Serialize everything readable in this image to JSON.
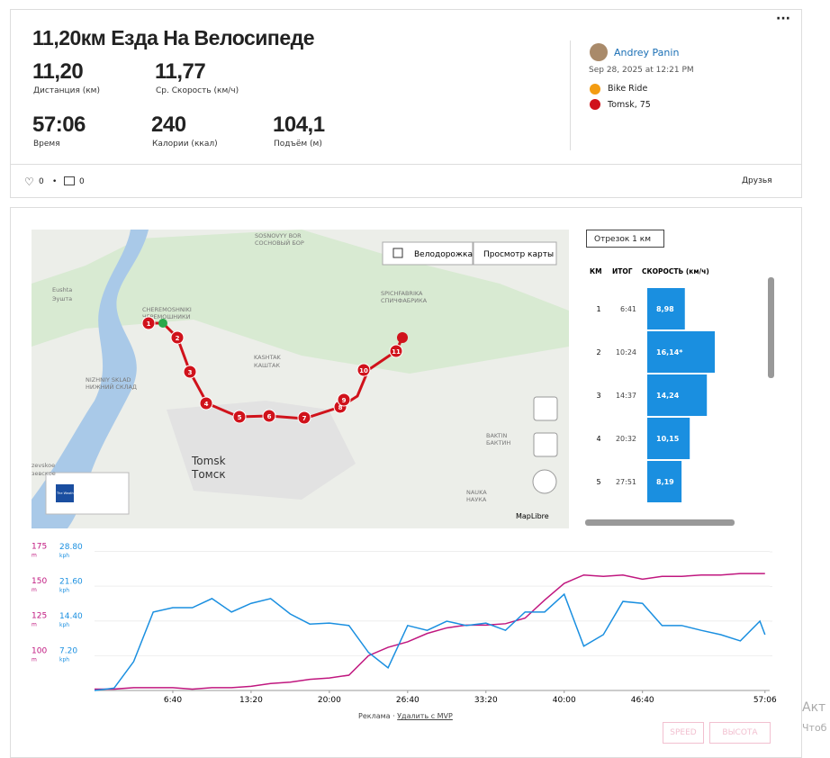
{
  "activity": {
    "title": "11,20км Езда На Велосипеде",
    "stats": [
      {
        "value": "11,20",
        "label": "Дистанция (км)"
      },
      {
        "value": "11,77",
        "label": "Ср. Скорость (км/ч)"
      },
      {
        "value": "57:06",
        "label": "Время"
      },
      {
        "value": "240",
        "label": "Калории (ккал)"
      },
      {
        "value": "104,1",
        "label": "Подъём (м)"
      }
    ],
    "user": "Andrey Panin",
    "date": "Sep 28, 2025 at 12:21 PM",
    "type": "Bike Ride",
    "location": "Tomsk, 75",
    "likes": "0",
    "comments": "0",
    "visibility": "Друзья"
  },
  "map": {
    "buttons": [
      "Велодорожка",
      "Просмотр карты"
    ],
    "places": [
      "SOSNOVYY BOR",
      "СОСНОВЫЙ БОР",
      "Eushta",
      "Эушта",
      "CHEREMOSHNIKI",
      "ЧЕРЕМОШНИКИ",
      "NIZHNIY SKLAD",
      "НИЖНИЙ СКЛАД",
      "KASHTAK",
      "КАШТАК",
      "SPICHFABRIKA",
      "СПИЧФАБРИКА",
      "BAKTIN",
      "БАКТИН",
      "NAUKA",
      "НАУКА",
      "Tomsk",
      "Томск",
      "zevskoe",
      "зевское"
    ],
    "markers": [
      1,
      2,
      3,
      4,
      5,
      6,
      7,
      8,
      9,
      10,
      11
    ],
    "weather": "The Weather Channel",
    "attribution": "MapLibre"
  },
  "splits": {
    "selector": "Отрезок 1 км",
    "headers": [
      "КМ",
      "ИТОГ",
      "СКОРОСТЬ (км/ч)"
    ],
    "rows": [
      {
        "km": 1,
        "time": "6:41",
        "speed": {
          "value": 8.98,
          "label": "8,98"
        }
      },
      {
        "km": 2,
        "time": "10:24",
        "speed": {
          "value": 16.14,
          "label": "16,14*"
        }
      },
      {
        "km": 3,
        "time": "14:37",
        "speed": {
          "value": 14.24,
          "label": "14,24"
        }
      },
      {
        "km": 4,
        "time": "20:32",
        "speed": {
          "value": 10.15,
          "label": "10,15"
        }
      },
      {
        "km": 5,
        "time": "27:51",
        "speed": {
          "value": 8.19,
          "label": "8,19"
        }
      }
    ]
  },
  "chart_data": {
    "type": "line",
    "y_unit": "m",
    "y2_unit": "kph",
    "x": [
      0,
      100,
      200,
      300,
      400,
      500,
      600,
      700,
      800,
      900,
      1000,
      1100,
      1200,
      1300,
      1400,
      1500,
      1600,
      1700,
      1800,
      1900,
      2000,
      2100,
      2200,
      2300,
      2400,
      2500,
      2600,
      2700,
      2800,
      2900,
      3000,
      3100,
      3200,
      3300,
      3400,
      3426
    ],
    "xlim": [
      0,
      3450
    ],
    "xticks": [
      {
        "value": 400,
        "label": "6:40"
      },
      {
        "value": 800,
        "label": "13:20"
      },
      {
        "value": 1200,
        "label": "20:00"
      },
      {
        "value": 1600,
        "label": "26:40"
      },
      {
        "value": 2000,
        "label": "33:20"
      },
      {
        "value": 2400,
        "label": "40:00"
      },
      {
        "value": 2800,
        "label": "46:40"
      },
      {
        "value": 3426,
        "label": "57:06"
      }
    ],
    "ylim": [
      75,
      185
    ],
    "yticks": [
      100,
      125,
      150,
      175
    ],
    "y2lim": [
      0,
      31.8
    ],
    "y2ticks": [
      {
        "value": 7.2,
        "label": "7.20"
      },
      {
        "value": 14.4,
        "label": "14.40"
      },
      {
        "value": 21.6,
        "label": "21.60"
      },
      {
        "value": 28.8,
        "label": "28.80"
      }
    ],
    "series": [
      {
        "name": "ВЫСОТА",
        "color": "#c0177f",
        "values": [
          76,
          76,
          77,
          77,
          77,
          76,
          77,
          77,
          78,
          80,
          81,
          83,
          84,
          86,
          100,
          106,
          110,
          116,
          120,
          122,
          122,
          123,
          127,
          140,
          152,
          158,
          157,
          158,
          155,
          157,
          157,
          158,
          158,
          159,
          159,
          159
        ]
      },
      {
        "name": "SPEED",
        "color": "#1a8fe0",
        "axis": "y2",
        "values": [
          0,
          0.5,
          6,
          16.3,
          17.2,
          17.2,
          19.1,
          16.3,
          18.1,
          19.1,
          15.9,
          13.8,
          14,
          13.5,
          7.9,
          4.7,
          13.5,
          12.5,
          14.4,
          13.5,
          14,
          12.5,
          16.3,
          16.3,
          20,
          9.2,
          11.6,
          18.5,
          18.1,
          13.5,
          13.5,
          12.5,
          11.6,
          10.3,
          14.4,
          11.6
        ]
      }
    ]
  },
  "footer": {
    "ad": "Реклама",
    "remove": "Удалить с MVP"
  },
  "overlay": [
    "Акт",
    "Чтоб"
  ]
}
